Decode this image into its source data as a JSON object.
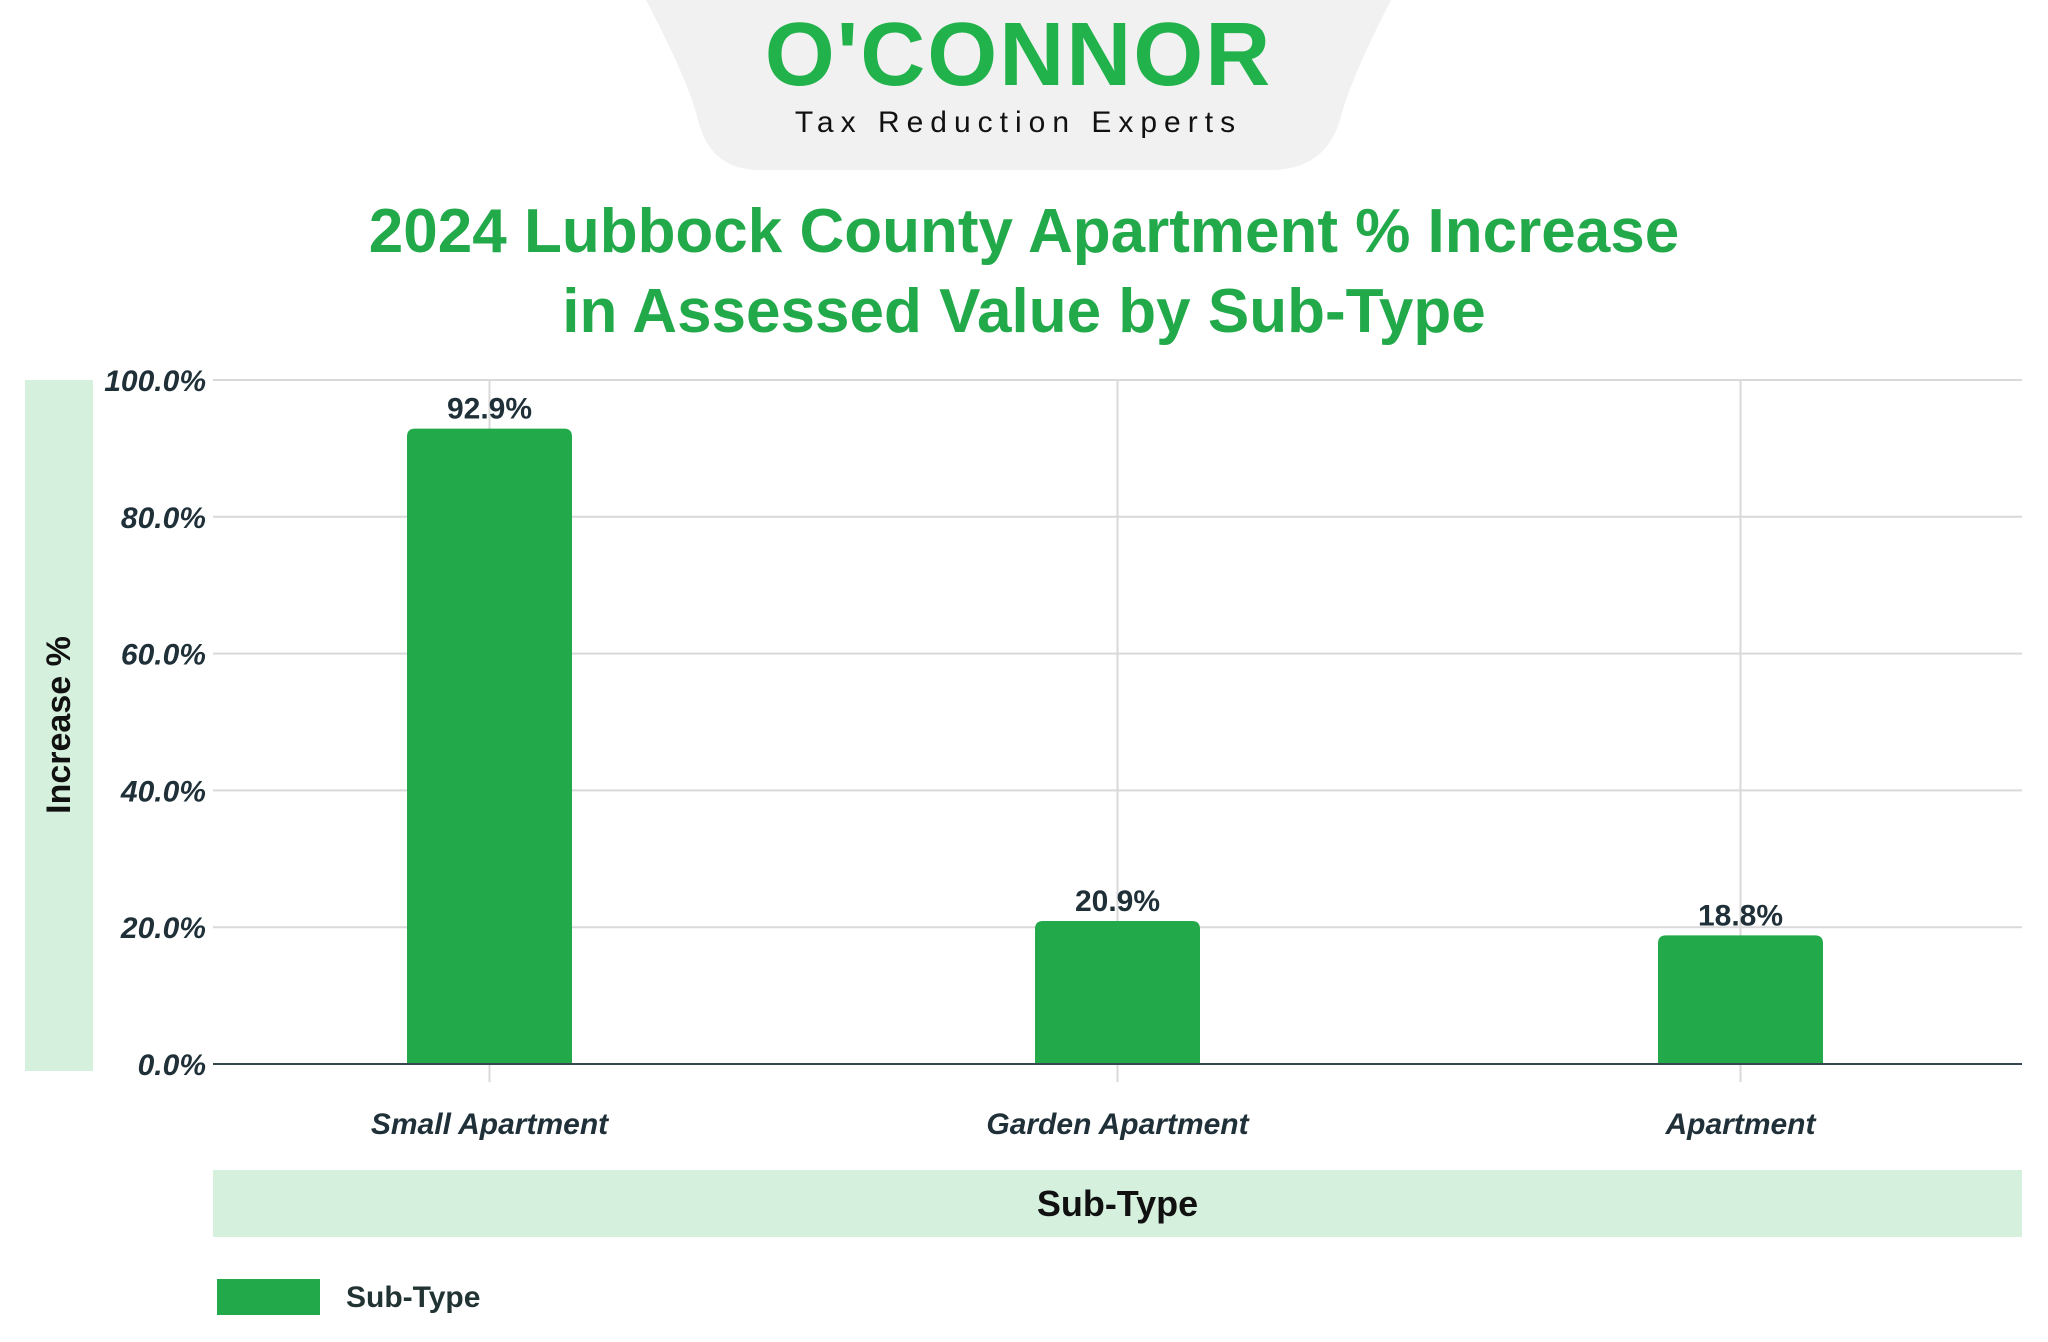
{
  "logo": {
    "name": "O'CONNOR",
    "tagline": "Tax Reduction Experts"
  },
  "colors": {
    "bar": "#22a94a",
    "title": "#22a94a",
    "band": "#d5f0dc",
    "grid": "#d9d9d9",
    "text": "#1f3038"
  },
  "chart_data": {
    "type": "bar",
    "title_lines": [
      "2024 Lubbock County  Apartment % Increase",
      "in Assessed Value by Sub-Type"
    ],
    "xlabel": "Sub-Type",
    "ylabel": "Increase %",
    "categories": [
      "Small Apartment",
      "Garden Apartment",
      "Apartment"
    ],
    "series": [
      {
        "name": "Sub-Type",
        "values": [
          92.9,
          20.9,
          18.8
        ]
      }
    ],
    "data_labels": [
      "92.9%",
      "20.9%",
      "18.8%"
    ],
    "yticks": [
      "0.0%",
      "20.0%",
      "40.0%",
      "60.0%",
      "80.0%",
      "100.0%"
    ],
    "ylim": [
      0,
      100
    ],
    "grid": true,
    "legend": {
      "placement": "bottom-left",
      "entries": [
        "Sub-Type"
      ]
    }
  }
}
